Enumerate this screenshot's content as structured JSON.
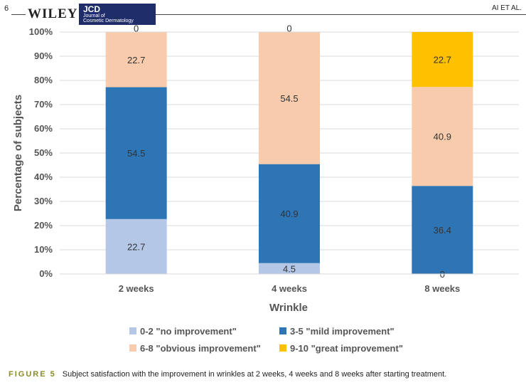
{
  "header": {
    "page_number": "6",
    "publisher": "WILEY",
    "journal_abbr": "JCD",
    "journal_line1": "Journal of",
    "journal_line2": "Cosmetic Dermatology",
    "running_head": "AI ET AL."
  },
  "caption": {
    "label": "FIGURE 5",
    "text": "Subject satisfaction with the improvement in wrinkles at 2 weeks, 4 weeks and 8 weeks after starting treatment."
  },
  "chart_data": {
    "type": "bar",
    "stacked": true,
    "categories": [
      "2 weeks",
      "4 weeks",
      "8 weeks"
    ],
    "series": [
      {
        "name": "0-2 \"no improvement\"",
        "color": "#b4c7e7",
        "values": [
          22.7,
          4.5,
          0
        ]
      },
      {
        "name": "3-5 \"mild improvement\"",
        "color": "#2e75b6",
        "values": [
          54.5,
          40.9,
          36.4
        ]
      },
      {
        "name": "6-8 \"obvious improvement\"",
        "color": "#f8cbad",
        "values": [
          22.7,
          54.5,
          40.9
        ]
      },
      {
        "name": "9-10 \"great improvement\"",
        "color": "#ffc000",
        "values": [
          0,
          0,
          22.7
        ]
      }
    ],
    "data_labels": [
      [
        "22.7",
        "4.5",
        "0"
      ],
      [
        "54.5",
        "40.9",
        "36.4"
      ],
      [
        "22.7",
        "54.5",
        "40.9"
      ],
      [
        "0",
        "0",
        "22.7"
      ]
    ],
    "xlabel": "Wrinkle",
    "ylabel": "Percentage of subjects",
    "yticks": [
      "0%",
      "10%",
      "20%",
      "30%",
      "40%",
      "50%",
      "60%",
      "70%",
      "80%",
      "90%",
      "100%"
    ],
    "ylim": [
      0,
      100
    ],
    "grid": true,
    "legend_position": "bottom"
  }
}
